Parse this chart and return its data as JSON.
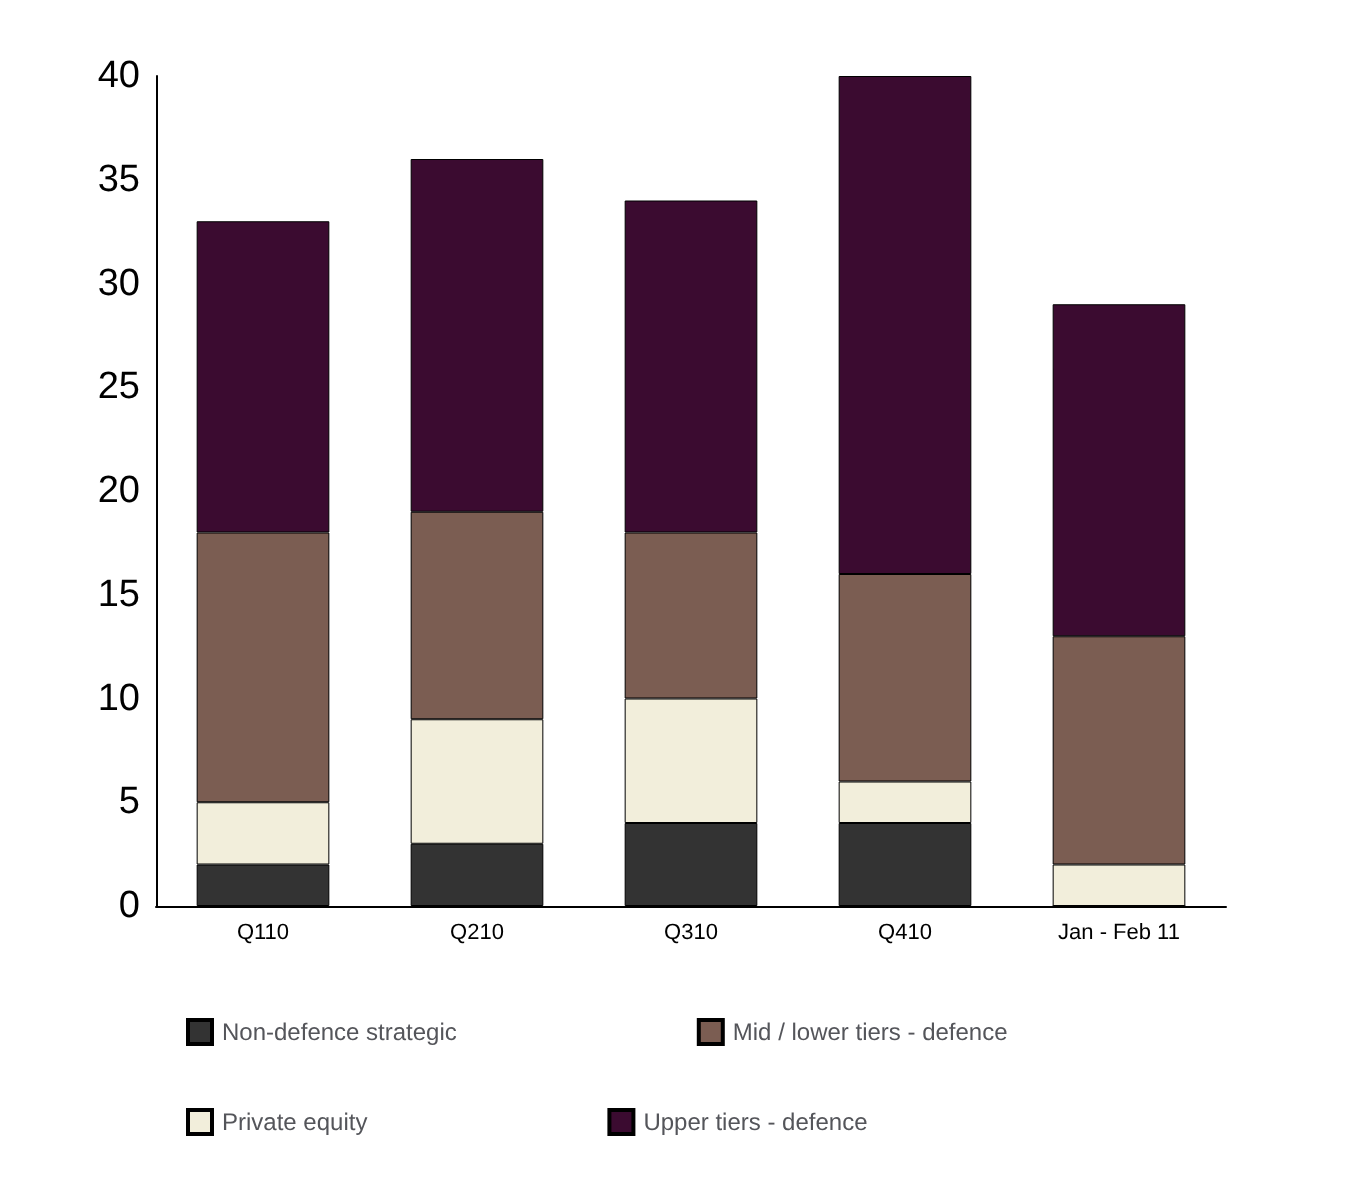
{
  "chart_data": {
    "type": "bar",
    "stacked": true,
    "categories": [
      "Q110",
      "Q210",
      "Q310",
      "Q410",
      "Jan - Feb 11"
    ],
    "series": [
      {
        "name": "Non-defence strategic",
        "color": "#333333",
        "values": [
          2,
          3,
          4,
          4,
          0
        ]
      },
      {
        "name": "Private equity",
        "color": "#f2eedb",
        "values": [
          3,
          6,
          6,
          2,
          2
        ]
      },
      {
        "name": "Mid / lower tiers - defence",
        "color": "#7b5d52",
        "values": [
          13,
          10,
          8,
          10,
          11
        ]
      },
      {
        "name": "Upper tiers - defence",
        "color": "#3b0b30",
        "values": [
          15,
          17,
          16,
          24,
          16
        ]
      }
    ],
    "ylim": [
      0,
      40
    ],
    "yticks": [
      0,
      5,
      10,
      15,
      20,
      25,
      30,
      35,
      40
    ],
    "grid": false,
    "legend": "bottom"
  }
}
